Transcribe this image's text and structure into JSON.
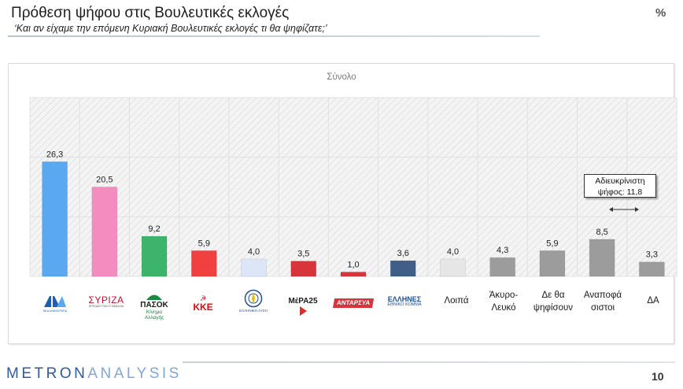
{
  "header": {
    "title": "Πρόθεση ψήφου στις Βουλευτικές εκλογές",
    "subtitle": "‘Και αν είχαμε την επόμενη Κυριακή Βουλευτικές εκλογές τι θα ψηφίζατε;’",
    "unit": "%"
  },
  "chart_data": {
    "type": "bar",
    "title": "Σύνολο",
    "categories": [
      "ΝΔ",
      "ΣΥΡΙΖΑ",
      "ΠΑΣΟΚ",
      "ΚΚΕ",
      "Ελληνική Λύση",
      "ΜέΡΑ25",
      "ΑΝΤΑΡΣΥΑ",
      "Έλληνες",
      "Λοιπά",
      "Άκυρο-Λευκό",
      "Δε θα ψηφίσουν",
      "Αναποφάσιστοι",
      "ΔΑ"
    ],
    "values": [
      26.3,
      20.5,
      9.2,
      5.9,
      4.0,
      3.5,
      1.0,
      3.6,
      4.0,
      4.3,
      5.9,
      8.5,
      3.3
    ],
    "value_labels": [
      "26,3",
      "20,5",
      "9,2",
      "5,9",
      "4,0",
      "3,5",
      "1,0",
      "3,6",
      "4,0",
      "4,3",
      "5,9",
      "8,5",
      "3,3"
    ],
    "colors": [
      "#5aa8f0",
      "#f48cc0",
      "#3cb46c",
      "#f04040",
      "#dde6f6",
      "#d8343c",
      "#d8343c",
      "#3f5f88",
      "#e6e6e6",
      "#9c9c9c",
      "#9c9c9c",
      "#9c9c9c",
      "#9c9c9c"
    ],
    "ylim": [
      0,
      41
    ],
    "grid": true,
    "legend": "none"
  },
  "logos": {
    "nd": "ΝΔ",
    "nd_sub": "ΝΕΑ ΔΗΜΟΚΡΑΤΙΑ",
    "syriza": "ΣΥΡΙΖΑ",
    "syriza_sub": "ΠΡΟΟΔΕΥΤΙΚΗ ΣΥΜΜΑΧΙΑ",
    "pasok": "ΠΑΣΟΚ",
    "pasok_sub": "Κίνημα Αλλαγής",
    "kke": "ΚΚΕ",
    "el_lysi": "ΕΛΛΗΝΙΚΗ ΛΥΣΗ",
    "mera25": "ΜέΡΑ25",
    "antarsya": "ΑΝΤΑΡΣΥΑ",
    "ellines": "ΕΛΛΗΝΕΣ",
    "ellines_sub": "ΕΘΝΙΚΟ ΚΟΜΜΑ"
  },
  "labels": {
    "loipa": "Λοιπά",
    "akyro_1": "Άκυρο-",
    "akyro_2": "Λευκό",
    "de_tha_1": "Δε θα",
    "de_tha_2": "ψηφίσουν",
    "anapof_1": "Αναποφά",
    "anapof_2": "σιστοι",
    "da": "ΔΑ"
  },
  "annotation": {
    "line1": "Αδιευκρίνιστη",
    "line2": "ψήφος: 11,8"
  },
  "footer": {
    "brand_part1": "METRON",
    "brand_part2": "ANALYSIS",
    "page": "10"
  },
  "icons": {
    "nd": "nd-logo-icon",
    "kke": "hammer-sickle-icon",
    "lysi": "compass-seal-icon",
    "mera": "mera-arrow-icon"
  }
}
